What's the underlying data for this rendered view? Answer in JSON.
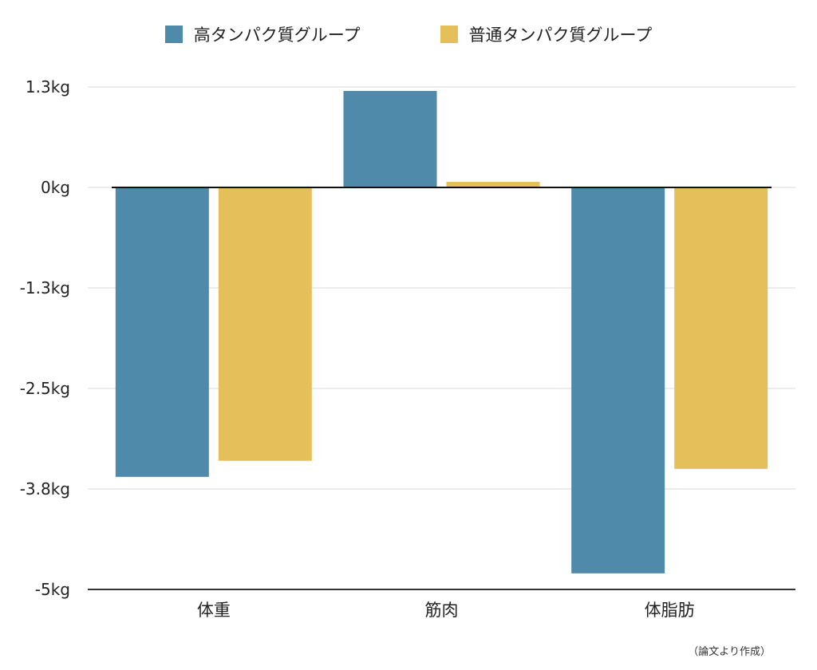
{
  "chart_data": {
    "type": "bar",
    "categories": [
      "体重",
      "筋肉",
      "体脂肪"
    ],
    "series": [
      {
        "name": "高タンパク質グループ",
        "color": "#4f8aab",
        "values": [
          -3.6,
          1.2,
          -4.8
        ]
      },
      {
        "name": "普通タンパク質グループ",
        "color": "#e5bf5a",
        "values": [
          -3.4,
          0.07,
          -3.5
        ]
      }
    ],
    "yticks": [
      1.25,
      0,
      -1.25,
      -2.5,
      -3.75,
      -5
    ],
    "ytick_labels": [
      "1.3kg",
      "0kg",
      "-1.3kg",
      "-2.5kg",
      "-3.8kg",
      "-5kg"
    ],
    "ylim": [
      -5,
      1.25
    ],
    "grid": true,
    "legend": "top",
    "title": "",
    "xlabel": "",
    "ylabel": ""
  },
  "note": "（論文より作成）"
}
